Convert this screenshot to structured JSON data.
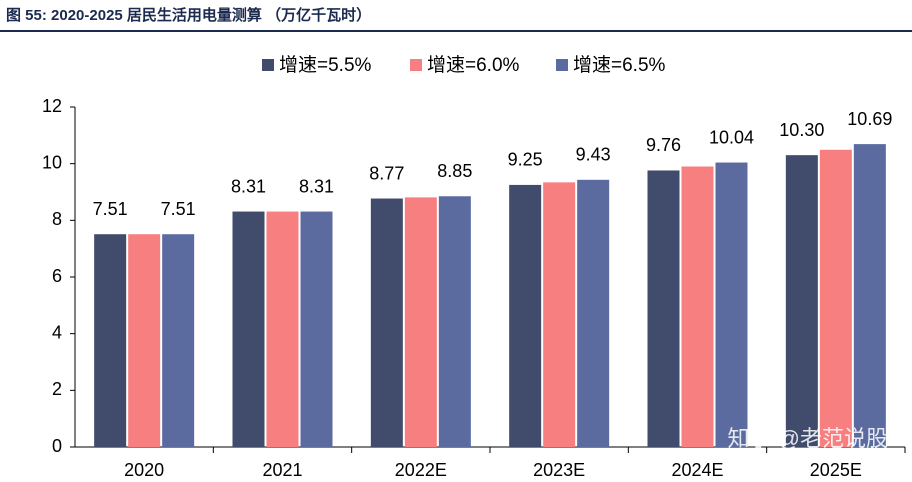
{
  "chart_data": {
    "type": "bar",
    "title": "图 55: 2020-2025 居民生活用电量测算 （万亿千瓦时）",
    "categories": [
      "2020",
      "2021",
      "2022E",
      "2023E",
      "2024E",
      "2025E"
    ],
    "series": [
      {
        "name": "增速=5.5%",
        "color": "#414b6c",
        "values": [
          7.51,
          8.31,
          8.77,
          9.25,
          9.76,
          10.3
        ],
        "value_labels": [
          "7.51",
          "8.31",
          "8.77",
          "9.25",
          "9.76",
          "10.30"
        ]
      },
      {
        "name": "增速=6.0%",
        "color": "#f77f7f",
        "values": [
          7.51,
          8.31,
          8.81,
          9.34,
          9.9,
          10.49
        ]
      },
      {
        "name": "增速=6.5%",
        "color": "#5b6ba0",
        "values": [
          7.51,
          8.31,
          8.85,
          9.43,
          10.04,
          10.69
        ],
        "value_labels": [
          "7.51",
          "8.31",
          "8.85",
          "9.43",
          "10.04",
          "10.69"
        ]
      }
    ],
    "ylim": [
      0,
      12
    ],
    "yticks": [
      0,
      2,
      4,
      6,
      8,
      10,
      12
    ],
    "watermark": "知乎 @老范说股"
  }
}
